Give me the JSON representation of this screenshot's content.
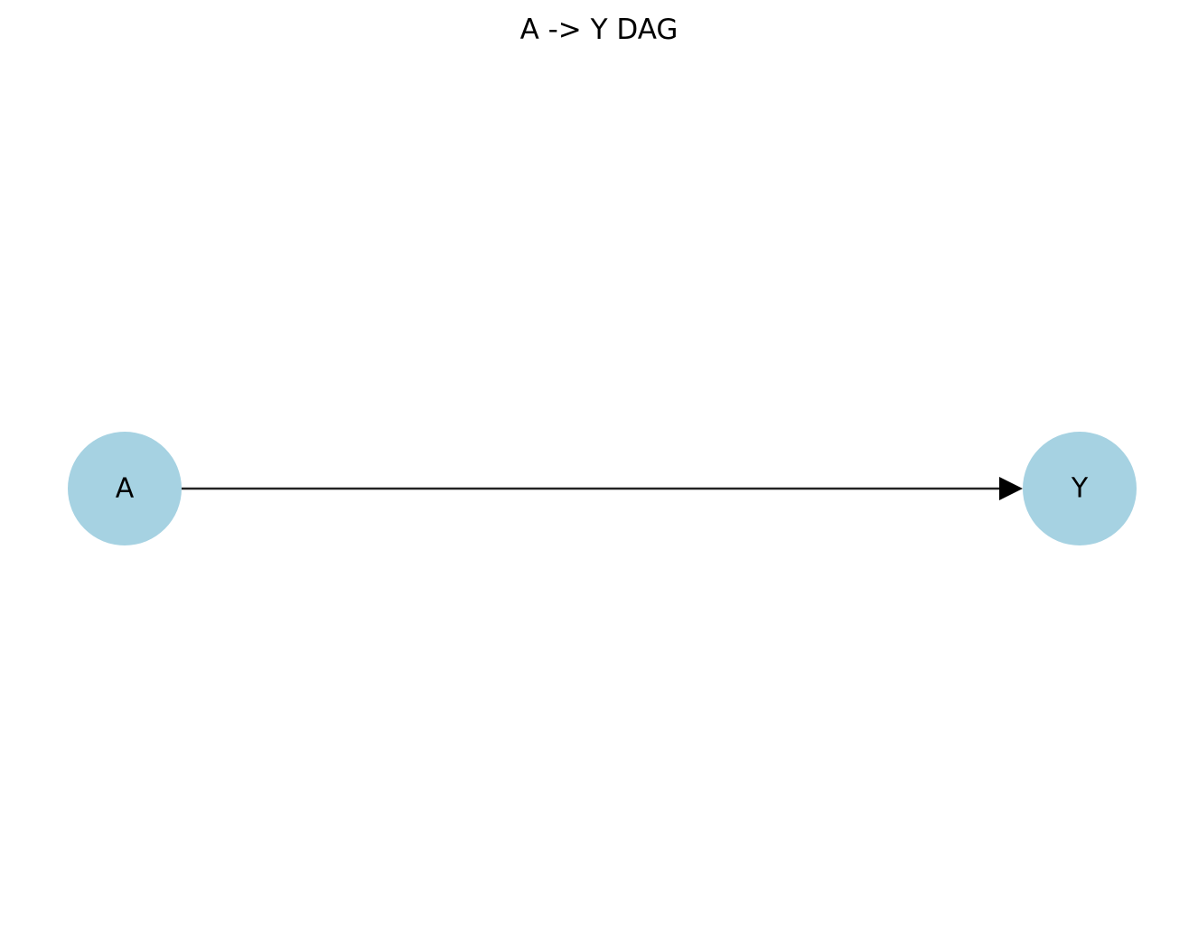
{
  "diagram": {
    "title": "A -> Y DAG",
    "node_color": "#a6d2e2",
    "edge_color": "#222222",
    "label_color": "#000000",
    "nodes": [
      {
        "id": "A",
        "label": "A"
      },
      {
        "id": "Y",
        "label": "Y"
      }
    ],
    "edges": [
      {
        "from": "A",
        "to": "Y",
        "directed": true
      }
    ]
  }
}
